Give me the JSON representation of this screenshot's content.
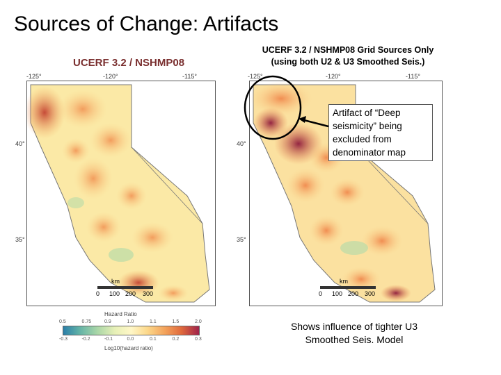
{
  "slide": {
    "title": "Sources of Change: Artifacts"
  },
  "left_map": {
    "title": "UCERF 3.2 / NSHMP08",
    "lon_ticks": [
      "-125°",
      "-120°",
      "-115°"
    ],
    "lat_ticks": [
      "40°",
      "35°"
    ],
    "scale_label": "km",
    "scale_ticks": [
      "0",
      "100",
      "200",
      "300"
    ]
  },
  "right_map": {
    "caption_line1": "UCERF 3.2 / NSHMP08 Grid Sources Only",
    "caption_line2": "(using both U2 & U3 Smoothed Seis.)",
    "lon_ticks": [
      "-125°",
      "-120°",
      "-115°"
    ],
    "lat_ticks": [
      "40°",
      "35°"
    ],
    "scale_label": "km",
    "scale_ticks": [
      "0",
      "100",
      "200",
      "300"
    ]
  },
  "callout": {
    "text": "Artifact of “Deep seismicity” being excluded from denominator map"
  },
  "note": {
    "text": "Shows influence of tighter U3 Smoothed Seis. Model"
  },
  "colorbar": {
    "title": "Hazard Ratio",
    "subtitle": "Log10(hazard ratio)",
    "top_ticks": [
      "0.5",
      "0.75",
      "0.9",
      "1.0",
      "1.1",
      "1.5",
      "2.0"
    ],
    "bottom_ticks": [
      "-0.3",
      "-0.2",
      "-0.1",
      "0.0",
      "0.1",
      "0.2",
      "0.3"
    ]
  },
  "colors": {
    "low": "#2b7fa8",
    "neutral": "#fff7c7",
    "high": "#a0224a",
    "ocean": "#ffffff"
  }
}
